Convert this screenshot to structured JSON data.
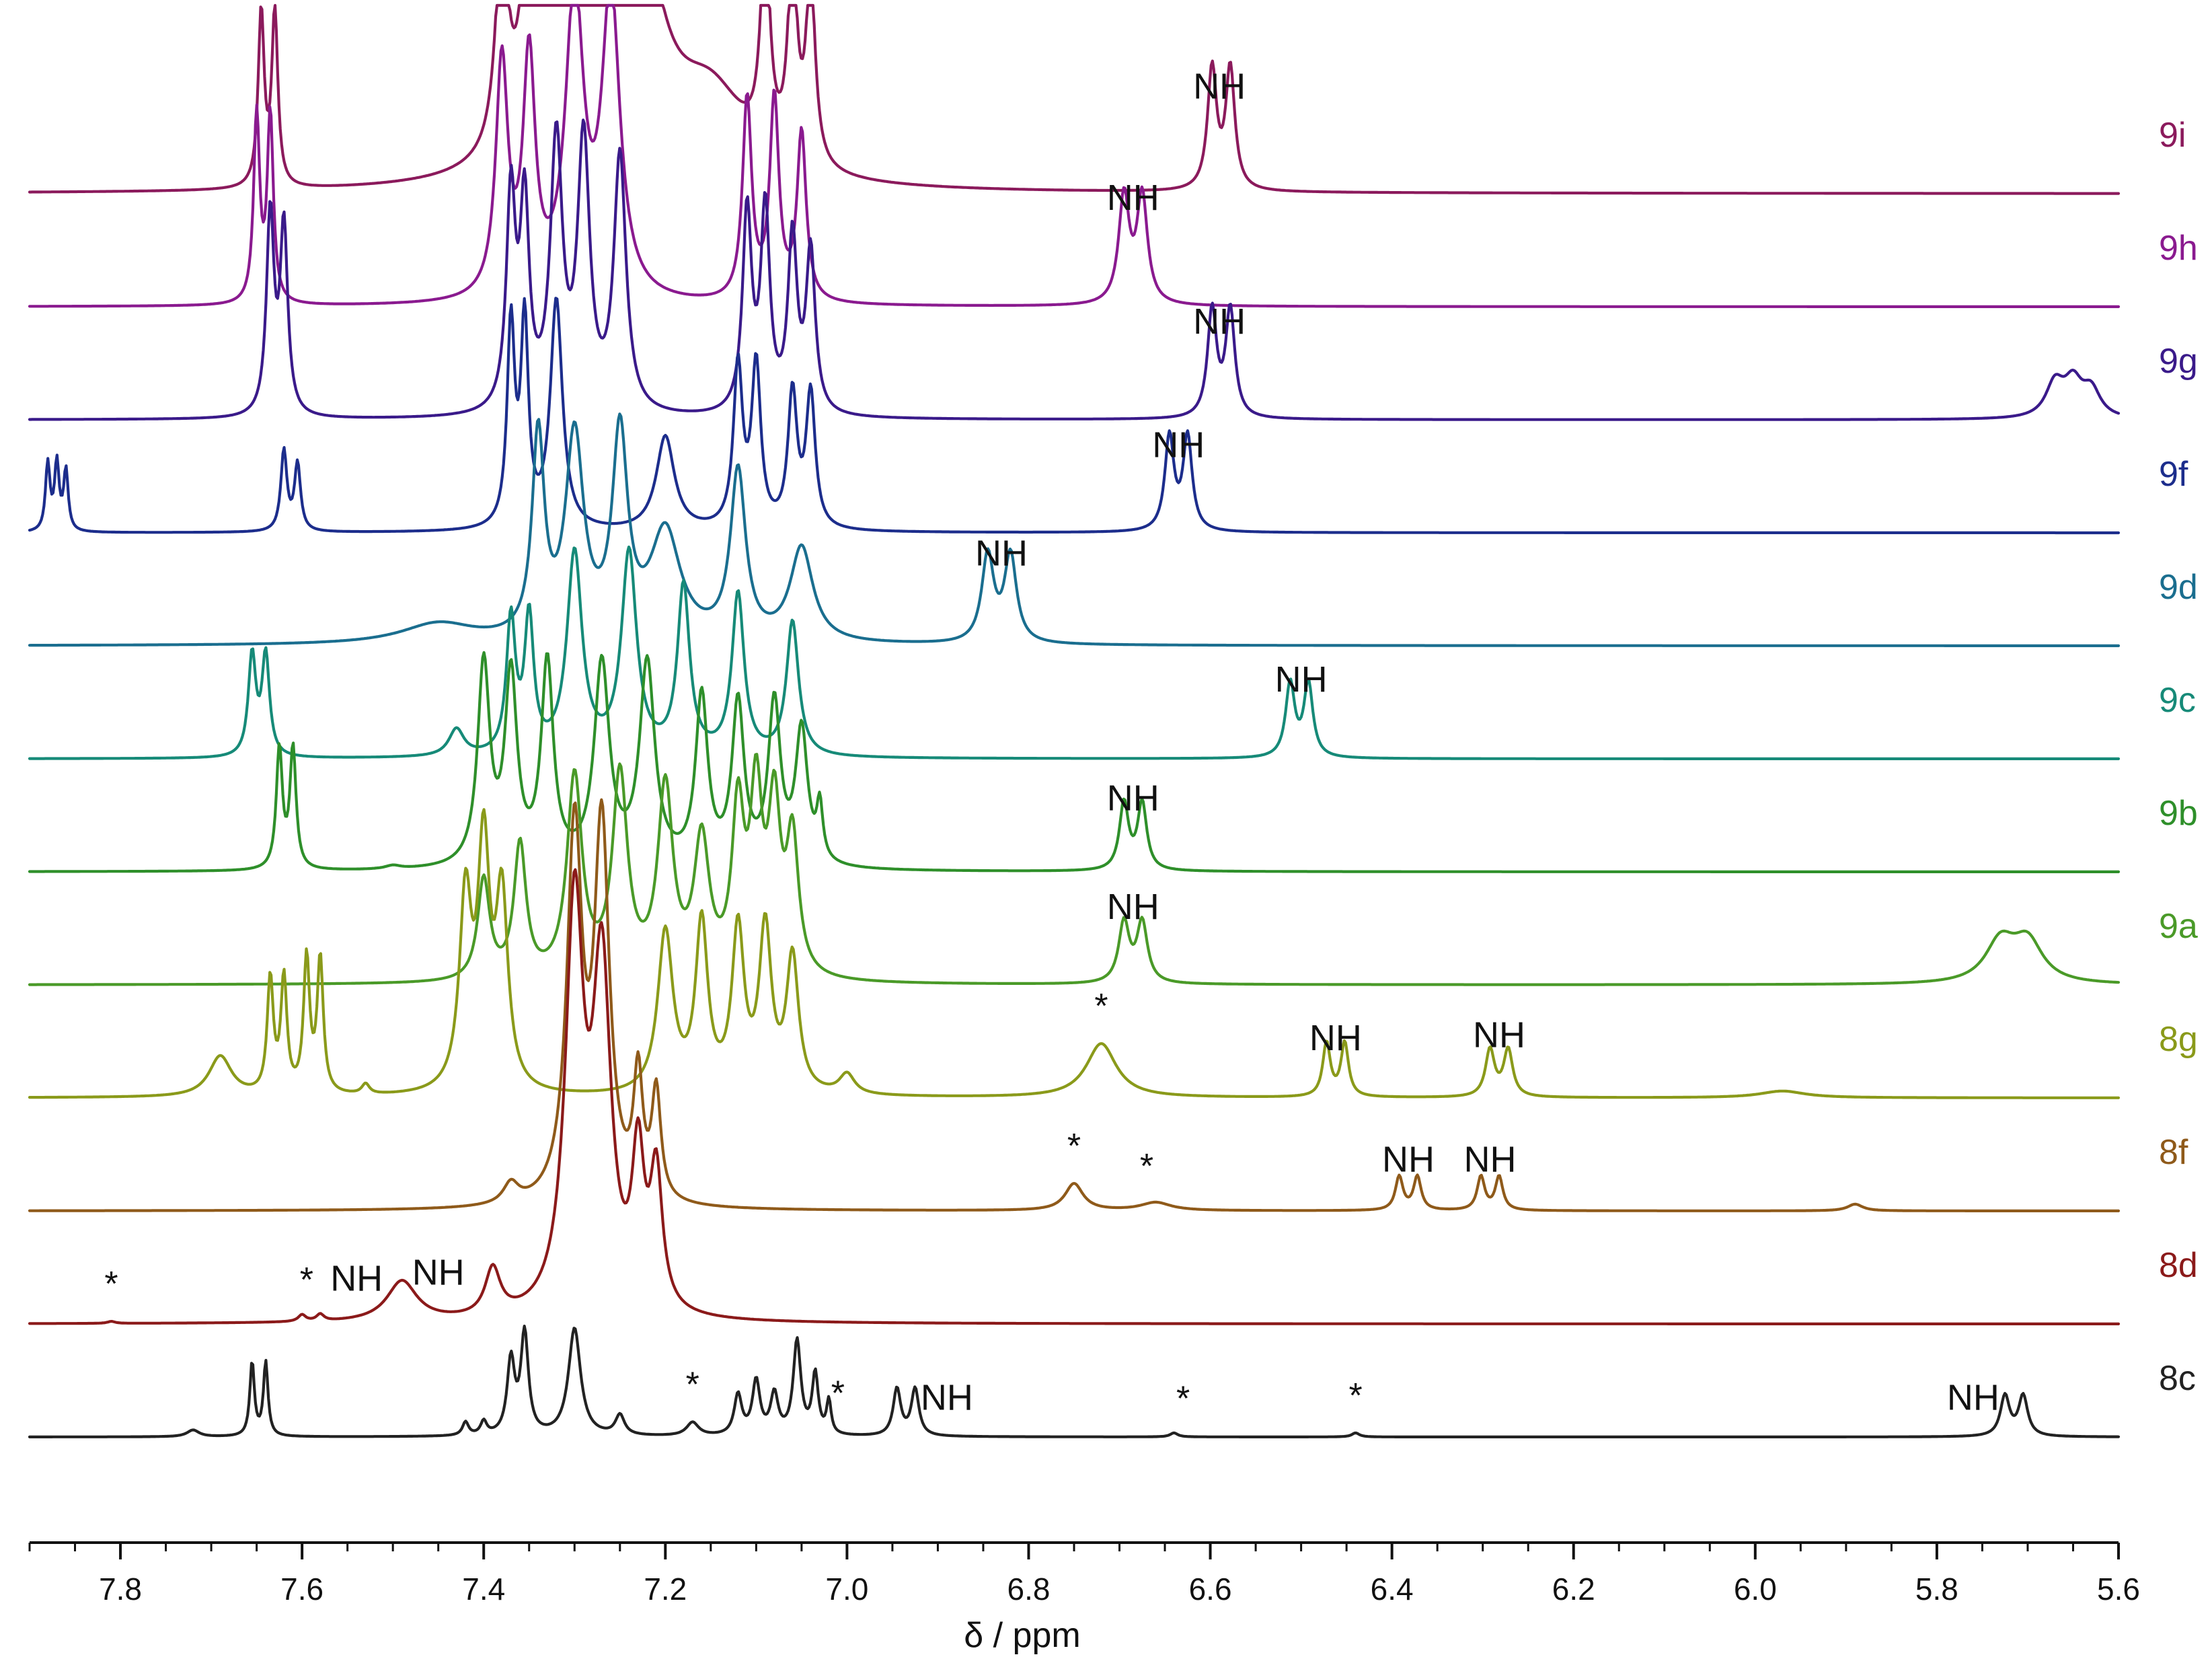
{
  "chart_data": {
    "type": "line",
    "title": "",
    "xlabel": "δ / ppm",
    "ylabel": "",
    "xlim": [
      7.9,
      5.6
    ],
    "x_reversed": true,
    "x_ticks": [
      "7.8",
      "7.6",
      "7.4",
      "7.2",
      "7.0",
      "6.8",
      "6.6",
      "6.4",
      "6.2",
      "6.0",
      "5.8",
      "5.6"
    ],
    "grid": false,
    "series": [
      {
        "name": "9i",
        "color": "#8b1a5c",
        "offset": 9,
        "peaks": [
          [
            7.645,
            2.6,
            0.004
          ],
          [
            7.63,
            2.6,
            0.004
          ],
          [
            7.38,
            3.2,
            0.008
          ],
          [
            7.35,
            3.5,
            0.008
          ],
          [
            7.31,
            5.0,
            0.02
          ],
          [
            7.27,
            5.0,
            0.02
          ],
          [
            7.23,
            3.0,
            0.03
          ],
          [
            7.15,
            1.2,
            0.05
          ],
          [
            7.09,
            3.2,
            0.006
          ],
          [
            7.06,
            3.0,
            0.006
          ],
          [
            7.04,
            2.8,
            0.006
          ],
          [
            6.598,
            1.8,
            0.006
          ],
          [
            6.578,
            1.8,
            0.006
          ]
        ],
        "annotations": [
          {
            "text": "NH",
            "x": 6.59
          }
        ]
      },
      {
        "name": "9h",
        "color": "#8a1a8f",
        "offset": 8,
        "peaks": [
          [
            7.65,
            2.8,
            0.004
          ],
          [
            7.635,
            2.8,
            0.004
          ],
          [
            7.38,
            3.5,
            0.008
          ],
          [
            7.35,
            3.5,
            0.008
          ],
          [
            7.3,
            4.5,
            0.012
          ],
          [
            7.26,
            4.5,
            0.012
          ],
          [
            7.11,
            3.0,
            0.006
          ],
          [
            7.08,
            3.0,
            0.006
          ],
          [
            7.05,
            2.5,
            0.006
          ],
          [
            6.695,
            1.6,
            0.007
          ],
          [
            6.675,
            1.6,
            0.007
          ]
        ],
        "annotations": [
          {
            "text": "NH",
            "x": 6.685
          }
        ]
      },
      {
        "name": "9g",
        "color": "#3a1a8a",
        "offset": 7,
        "peaks": [
          [
            7.635,
            3.0,
            0.005
          ],
          [
            7.62,
            2.8,
            0.005
          ],
          [
            7.37,
            3.2,
            0.006
          ],
          [
            7.355,
            3.0,
            0.006
          ],
          [
            7.32,
            4.0,
            0.008
          ],
          [
            7.29,
            4.0,
            0.008
          ],
          [
            7.25,
            3.8,
            0.008
          ],
          [
            7.11,
            3.0,
            0.006
          ],
          [
            7.09,
            3.0,
            0.006
          ],
          [
            7.06,
            2.6,
            0.006
          ],
          [
            7.04,
            2.4,
            0.006
          ],
          [
            6.598,
            1.6,
            0.006
          ],
          [
            6.578,
            1.6,
            0.006
          ],
          [
            5.67,
            0.5,
            0.012
          ],
          [
            5.65,
            0.5,
            0.012
          ],
          [
            5.63,
            0.4,
            0.012
          ]
        ],
        "annotations": [
          {
            "text": "NH",
            "x": 6.59
          }
        ]
      },
      {
        "name": "9f",
        "color": "#1c2d8c",
        "offset": 6,
        "peaks": [
          [
            7.88,
            1.0,
            0.003
          ],
          [
            7.87,
            1.0,
            0.003
          ],
          [
            7.86,
            0.9,
            0.003
          ],
          [
            7.62,
            1.2,
            0.004
          ],
          [
            7.605,
            1.0,
            0.004
          ],
          [
            7.37,
            3.0,
            0.005
          ],
          [
            7.355,
            3.0,
            0.005
          ],
          [
            7.32,
            3.4,
            0.008
          ],
          [
            7.2,
            1.4,
            0.012
          ],
          [
            7.12,
            2.4,
            0.006
          ],
          [
            7.1,
            2.4,
            0.006
          ],
          [
            7.06,
            2.0,
            0.006
          ],
          [
            7.04,
            2.0,
            0.006
          ],
          [
            6.645,
            1.4,
            0.006
          ],
          [
            6.625,
            1.4,
            0.006
          ]
        ],
        "annotations": [
          {
            "text": "NH",
            "x": 6.635
          }
        ]
      },
      {
        "name": "9d",
        "color": "#1a6e8f",
        "offset": 5,
        "peaks": [
          [
            7.45,
            0.3,
            0.05
          ],
          [
            7.34,
            3.0,
            0.008
          ],
          [
            7.3,
            3.0,
            0.012
          ],
          [
            7.25,
            3.0,
            0.01
          ],
          [
            7.2,
            1.6,
            0.02
          ],
          [
            7.12,
            2.5,
            0.01
          ],
          [
            7.05,
            1.4,
            0.015
          ],
          [
            6.845,
            1.3,
            0.008
          ],
          [
            6.82,
            1.3,
            0.008
          ]
        ],
        "annotations": [
          {
            "text": "NH",
            "x": 6.83
          }
        ]
      },
      {
        "name": "9c",
        "color": "#168a78",
        "offset": 4,
        "peaks": [
          [
            7.655,
            1.5,
            0.005
          ],
          [
            7.64,
            1.5,
            0.005
          ],
          [
            7.43,
            0.4,
            0.01
          ],
          [
            7.37,
            2.0,
            0.006
          ],
          [
            7.35,
            2.0,
            0.006
          ],
          [
            7.3,
            3.0,
            0.01
          ],
          [
            7.24,
            3.0,
            0.01
          ],
          [
            7.18,
            2.5,
            0.008
          ],
          [
            7.12,
            2.4,
            0.008
          ],
          [
            7.06,
            2.0,
            0.008
          ],
          [
            6.512,
            1.1,
            0.006
          ],
          [
            6.492,
            1.1,
            0.006
          ]
        ],
        "annotations": [
          {
            "text": "NH",
            "x": 6.5
          }
        ]
      },
      {
        "name": "9b",
        "color": "#2e8f2a",
        "offset": 3,
        "peaks": [
          [
            7.625,
            1.8,
            0.004
          ],
          [
            7.61,
            1.8,
            0.004
          ],
          [
            7.5,
            0.05,
            0.01
          ],
          [
            7.4,
            3.0,
            0.008
          ],
          [
            7.37,
            2.8,
            0.008
          ],
          [
            7.33,
            3.0,
            0.008
          ],
          [
            7.27,
            3.0,
            0.01
          ],
          [
            7.22,
            3.0,
            0.01
          ],
          [
            7.16,
            2.5,
            0.008
          ],
          [
            7.12,
            2.4,
            0.008
          ],
          [
            7.08,
            2.4,
            0.008
          ],
          [
            7.05,
            2.0,
            0.008
          ],
          [
            7.03,
            0.8,
            0.004
          ],
          [
            6.695,
            1.0,
            0.006
          ],
          [
            6.675,
            1.0,
            0.006
          ]
        ],
        "annotations": [
          {
            "text": "NH",
            "x": 6.685
          }
        ]
      },
      {
        "name": "9a",
        "color": "#4a9a28",
        "offset": 2,
        "peaks": [
          [
            7.4,
            1.5,
            0.008
          ],
          [
            7.36,
            2.0,
            0.008
          ],
          [
            7.3,
            3.0,
            0.01
          ],
          [
            7.25,
            3.0,
            0.01
          ],
          [
            7.2,
            2.8,
            0.01
          ],
          [
            7.16,
            2.0,
            0.01
          ],
          [
            7.12,
            2.4,
            0.008
          ],
          [
            7.1,
            2.6,
            0.008
          ],
          [
            7.08,
            2.4,
            0.008
          ],
          [
            7.06,
            2.0,
            0.008
          ],
          [
            6.695,
            0.9,
            0.007
          ],
          [
            6.675,
            0.9,
            0.007
          ],
          [
            5.73,
            0.6,
            0.02
          ],
          [
            5.7,
            0.6,
            0.02
          ]
        ],
        "annotations": [
          {
            "text": "NH",
            "x": 6.685
          }
        ]
      },
      {
        "name": "8g",
        "color": "#8a9a1a",
        "offset": 1,
        "peaks": [
          [
            7.69,
            0.6,
            0.015
          ],
          [
            7.635,
            1.7,
            0.004
          ],
          [
            7.62,
            1.7,
            0.004
          ],
          [
            7.595,
            2.0,
            0.004
          ],
          [
            7.58,
            2.0,
            0.004
          ],
          [
            7.53,
            0.15,
            0.005
          ],
          [
            7.42,
            2.8,
            0.008
          ],
          [
            7.4,
            3.5,
            0.008
          ],
          [
            7.38,
            2.8,
            0.008
          ],
          [
            7.2,
            2.4,
            0.01
          ],
          [
            7.16,
            2.5,
            0.008
          ],
          [
            7.12,
            2.4,
            0.008
          ],
          [
            7.09,
            2.4,
            0.008
          ],
          [
            7.06,
            2.0,
            0.008
          ],
          [
            7.0,
            0.3,
            0.01
          ],
          [
            6.72,
            0.8,
            0.02
          ],
          [
            6.472,
            0.8,
            0.005
          ],
          [
            6.452,
            0.8,
            0.005
          ],
          [
            6.292,
            0.7,
            0.006
          ],
          [
            6.272,
            0.7,
            0.006
          ],
          [
            5.97,
            0.1,
            0.03
          ]
        ],
        "annotations": [
          {
            "text": "*",
            "x": 6.72
          },
          {
            "text": "NH",
            "x": 6.462
          },
          {
            "text": "NH",
            "x": 6.282
          }
        ]
      },
      {
        "name": "8f",
        "color": "#8f5a1a",
        "offset": 0,
        "peaks": [
          [
            7.37,
            0.3,
            0.01
          ],
          [
            7.3,
            5.5,
            0.01
          ],
          [
            7.27,
            5.5,
            0.01
          ],
          [
            7.23,
            1.8,
            0.006
          ],
          [
            7.21,
            1.6,
            0.006
          ],
          [
            6.75,
            0.4,
            0.012
          ],
          [
            6.66,
            0.12,
            0.02
          ],
          [
            6.392,
            0.5,
            0.005
          ],
          [
            6.372,
            0.5,
            0.005
          ],
          [
            6.302,
            0.5,
            0.005
          ],
          [
            6.282,
            0.5,
            0.005
          ],
          [
            5.89,
            0.1,
            0.01
          ]
        ],
        "annotations": [
          {
            "text": "*",
            "x": 6.75
          },
          {
            "text": "*",
            "x": 6.67
          },
          {
            "text": "NH",
            "x": 6.382
          },
          {
            "text": "NH",
            "x": 6.292
          }
        ]
      },
      {
        "name": "8d",
        "color": "#8b1a1a",
        "offset": -1,
        "peaks": [
          [
            7.81,
            0.03,
            0.005
          ],
          [
            7.6,
            0.1,
            0.005
          ],
          [
            7.58,
            0.1,
            0.005
          ],
          [
            7.49,
            0.6,
            0.02
          ],
          [
            7.39,
            0.7,
            0.01
          ],
          [
            7.3,
            6.0,
            0.012
          ],
          [
            7.27,
            5.0,
            0.012
          ],
          [
            7.23,
            2.2,
            0.008
          ],
          [
            7.21,
            2.0,
            0.008
          ]
        ],
        "annotations": [
          {
            "text": "*",
            "x": 7.81
          },
          {
            "text": "*",
            "x": 7.595
          },
          {
            "text": "NH",
            "x": 7.54
          },
          {
            "text": "NH",
            "x": 7.45
          }
        ]
      },
      {
        "name": "8c",
        "color": "#222222",
        "offset": -2,
        "peaks": [
          [
            7.72,
            0.1,
            0.008
          ],
          [
            7.655,
            1.1,
            0.003
          ],
          [
            7.64,
            1.1,
            0.003
          ],
          [
            7.42,
            0.2,
            0.004
          ],
          [
            7.4,
            0.2,
            0.004
          ],
          [
            7.37,
            1.1,
            0.005
          ],
          [
            7.355,
            1.5,
            0.005
          ],
          [
            7.3,
            1.6,
            0.008
          ],
          [
            7.25,
            0.3,
            0.006
          ],
          [
            7.17,
            0.2,
            0.008
          ],
          [
            7.12,
            0.6,
            0.005
          ],
          [
            7.1,
            0.8,
            0.005
          ],
          [
            7.08,
            0.6,
            0.005
          ],
          [
            7.055,
            1.4,
            0.005
          ],
          [
            7.035,
            0.9,
            0.004
          ],
          [
            7.02,
            0.5,
            0.003
          ],
          [
            6.945,
            0.7,
            0.005
          ],
          [
            6.925,
            0.7,
            0.005
          ],
          [
            6.64,
            0.06,
            0.005
          ],
          [
            6.44,
            0.06,
            0.005
          ],
          [
            5.725,
            0.6,
            0.006
          ],
          [
            5.705,
            0.6,
            0.006
          ]
        ],
        "annotations": [
          {
            "text": "*",
            "x": 7.17
          },
          {
            "text": "*",
            "x": 7.01
          },
          {
            "text": "NH",
            "x": 6.89
          },
          {
            "text": "*",
            "x": 6.63
          },
          {
            "text": "*",
            "x": 6.44
          },
          {
            "text": "NH",
            "x": 5.76
          }
        ]
      }
    ]
  }
}
